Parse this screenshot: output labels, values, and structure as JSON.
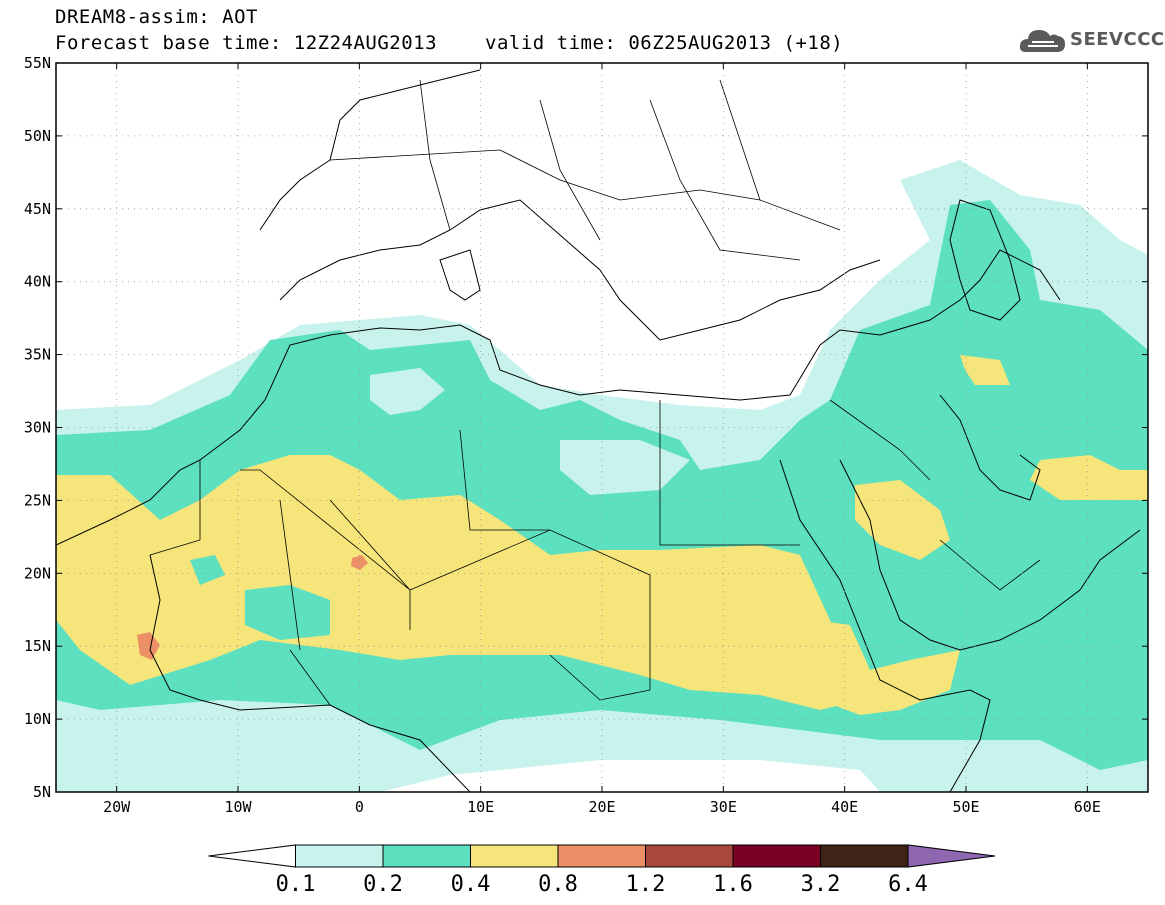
{
  "header": {
    "title_line1": "DREAM8-assim: AOT",
    "base_time": "Forecast base time: 12Z24AUG2013",
    "valid_time": "valid time: 06Z25AUG2013 (+18)"
  },
  "logo": {
    "text": "SEEVCCC",
    "icon": "cloud-icon"
  },
  "map": {
    "variable": "AOT",
    "lon_range": [
      -25,
      65
    ],
    "lat_range": [
      5,
      55
    ],
    "grid": true,
    "lon_ticks": [
      {
        "value": -20,
        "label": "20W"
      },
      {
        "value": -10,
        "label": "10W"
      },
      {
        "value": 0,
        "label": "0"
      },
      {
        "value": 10,
        "label": "10E"
      },
      {
        "value": 20,
        "label": "20E"
      },
      {
        "value": 30,
        "label": "30E"
      },
      {
        "value": 40,
        "label": "40E"
      },
      {
        "value": 50,
        "label": "50E"
      },
      {
        "value": 60,
        "label": "60E"
      }
    ],
    "lat_ticks": [
      {
        "value": 55,
        "label": "55N"
      },
      {
        "value": 50,
        "label": "50N"
      },
      {
        "value": 45,
        "label": "45N"
      },
      {
        "value": 40,
        "label": "40N"
      },
      {
        "value": 35,
        "label": "35N"
      },
      {
        "value": 30,
        "label": "30N"
      },
      {
        "value": 25,
        "label": "25N"
      },
      {
        "value": 20,
        "label": "20N"
      },
      {
        "value": 15,
        "label": "15N"
      },
      {
        "value": 10,
        "label": "10N"
      },
      {
        "value": 5,
        "label": "5N"
      }
    ]
  },
  "colorbar": {
    "levels": [
      "0.1",
      "0.2",
      "0.4",
      "0.8",
      "1.2",
      "1.6",
      "3.2",
      "6.4"
    ],
    "colors": [
      "#ffffff",
      "#c8f2ec",
      "#5ce0bf",
      "#f5e57a",
      "#ec8f66",
      "#a8483c",
      "#7a0024",
      "#3e2416",
      "#8f66b0"
    ]
  }
}
